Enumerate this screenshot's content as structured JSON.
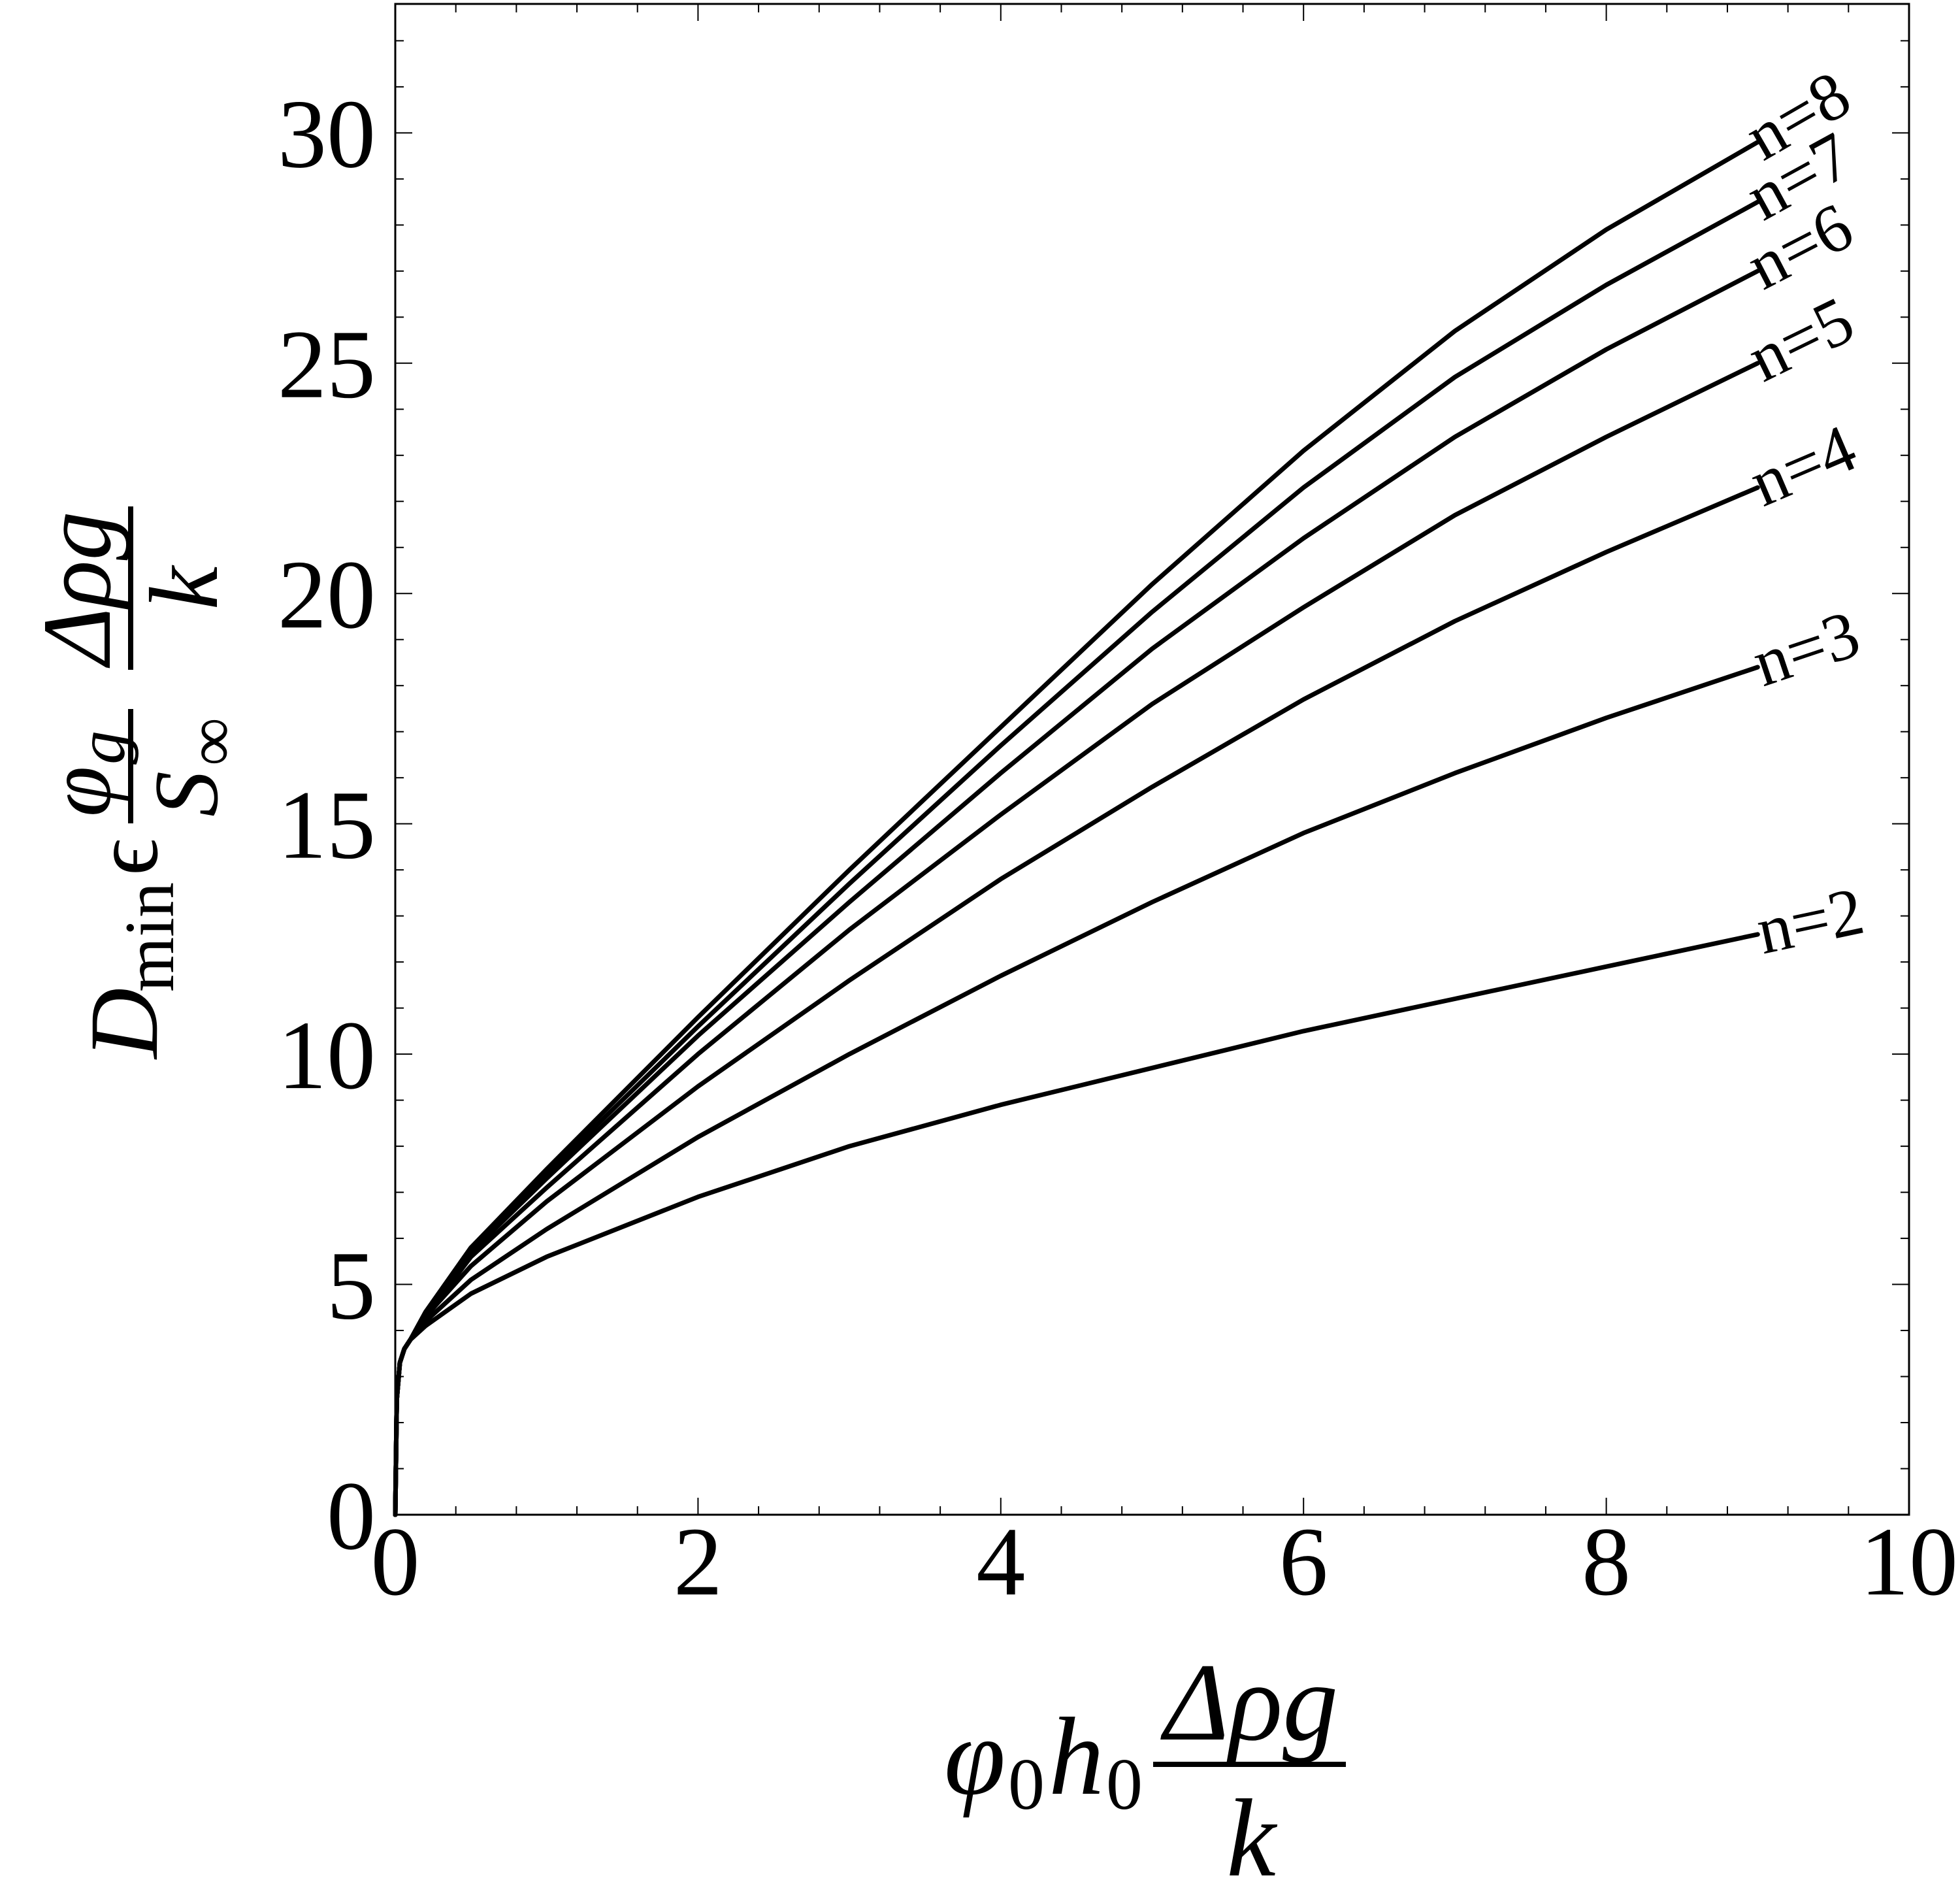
{
  "chart_data": {
    "type": "line",
    "title": "",
    "xlabel": {
      "lhs": "φ",
      "lhs_sub": "0",
      "lhs2": "h",
      "lhs2_sub": "0",
      "numerator": "Δρg",
      "denominator": "k"
    },
    "ylabel": {
      "main": "D",
      "main_sub": "min",
      "epsilon": "ϵ",
      "frac1_num": "φ",
      "frac1_num_sub": "g",
      "frac1_den": "S",
      "frac1_den_sub": "∞",
      "frac2_num": "Δρg",
      "frac2_den": "k"
    },
    "xlim": [
      0,
      10
    ],
    "ylim": [
      0,
      32.8
    ],
    "xticks": [
      "0",
      "2",
      "4",
      "6",
      "8",
      "10"
    ],
    "yticks": [
      "0",
      "5",
      "10",
      "15",
      "20",
      "25",
      "30"
    ],
    "grid": false,
    "series": [
      {
        "name": "n=2",
        "x": [
          0,
          0.01,
          0.03,
          0.06,
          0.1,
          0.2,
          0.5,
          1,
          2,
          3,
          4,
          5,
          6,
          7,
          8,
          9
        ],
        "y": [
          0,
          2.5,
          3.3,
          3.6,
          3.8,
          4.1,
          4.8,
          5.6,
          6.9,
          8.0,
          8.9,
          9.7,
          10.5,
          11.2,
          11.9,
          12.6
        ]
      },
      {
        "name": "n=3",
        "x": [
          0,
          0.01,
          0.03,
          0.06,
          0.1,
          0.2,
          0.5,
          1,
          2,
          3,
          4,
          5,
          6,
          7,
          8,
          9
        ],
        "y": [
          0,
          2.5,
          3.3,
          3.6,
          3.8,
          4.2,
          5.1,
          6.2,
          8.2,
          10.0,
          11.7,
          13.3,
          14.8,
          16.1,
          17.3,
          18.4
        ]
      },
      {
        "name": "n=4",
        "x": [
          0,
          0.01,
          0.03,
          0.06,
          0.1,
          0.2,
          0.5,
          1,
          2,
          3,
          4,
          5,
          6,
          7,
          8,
          9
        ],
        "y": [
          0,
          2.5,
          3.3,
          3.6,
          3.8,
          4.3,
          5.4,
          6.8,
          9.3,
          11.6,
          13.8,
          15.8,
          17.7,
          19.4,
          20.9,
          22.3
        ]
      },
      {
        "name": "n=5",
        "x": [
          0,
          0.01,
          0.03,
          0.06,
          0.1,
          0.2,
          0.5,
          1,
          2,
          3,
          4,
          5,
          6,
          7,
          8,
          9
        ],
        "y": [
          0,
          2.5,
          3.3,
          3.6,
          3.8,
          4.3,
          5.6,
          7.1,
          10.0,
          12.7,
          15.2,
          17.6,
          19.7,
          21.7,
          23.4,
          25.0
        ]
      },
      {
        "name": "n=6",
        "x": [
          0,
          0.01,
          0.03,
          0.06,
          0.1,
          0.2,
          0.5,
          1,
          2,
          3,
          4,
          5,
          6,
          7,
          8,
          9
        ],
        "y": [
          0,
          2.5,
          3.3,
          3.6,
          3.8,
          4.35,
          5.7,
          7.3,
          10.4,
          13.3,
          16.1,
          18.8,
          21.2,
          23.4,
          25.3,
          27.0
        ]
      },
      {
        "name": "n=7",
        "x": [
          0,
          0.01,
          0.03,
          0.06,
          0.1,
          0.2,
          0.5,
          1,
          2,
          3,
          4,
          5,
          6,
          7,
          8,
          9
        ],
        "y": [
          0,
          2.5,
          3.3,
          3.6,
          3.8,
          4.4,
          5.8,
          7.4,
          10.6,
          13.7,
          16.7,
          19.6,
          22.3,
          24.7,
          26.7,
          28.5
        ]
      },
      {
        "name": "n=8",
        "x": [
          0,
          0.01,
          0.03,
          0.06,
          0.1,
          0.2,
          0.5,
          1,
          2,
          3,
          4,
          5,
          6,
          7,
          8,
          9
        ],
        "y": [
          0,
          2.5,
          3.3,
          3.6,
          3.8,
          4.4,
          5.8,
          7.5,
          10.8,
          14.0,
          17.1,
          20.2,
          23.1,
          25.7,
          27.9,
          29.8
        ]
      }
    ]
  }
}
